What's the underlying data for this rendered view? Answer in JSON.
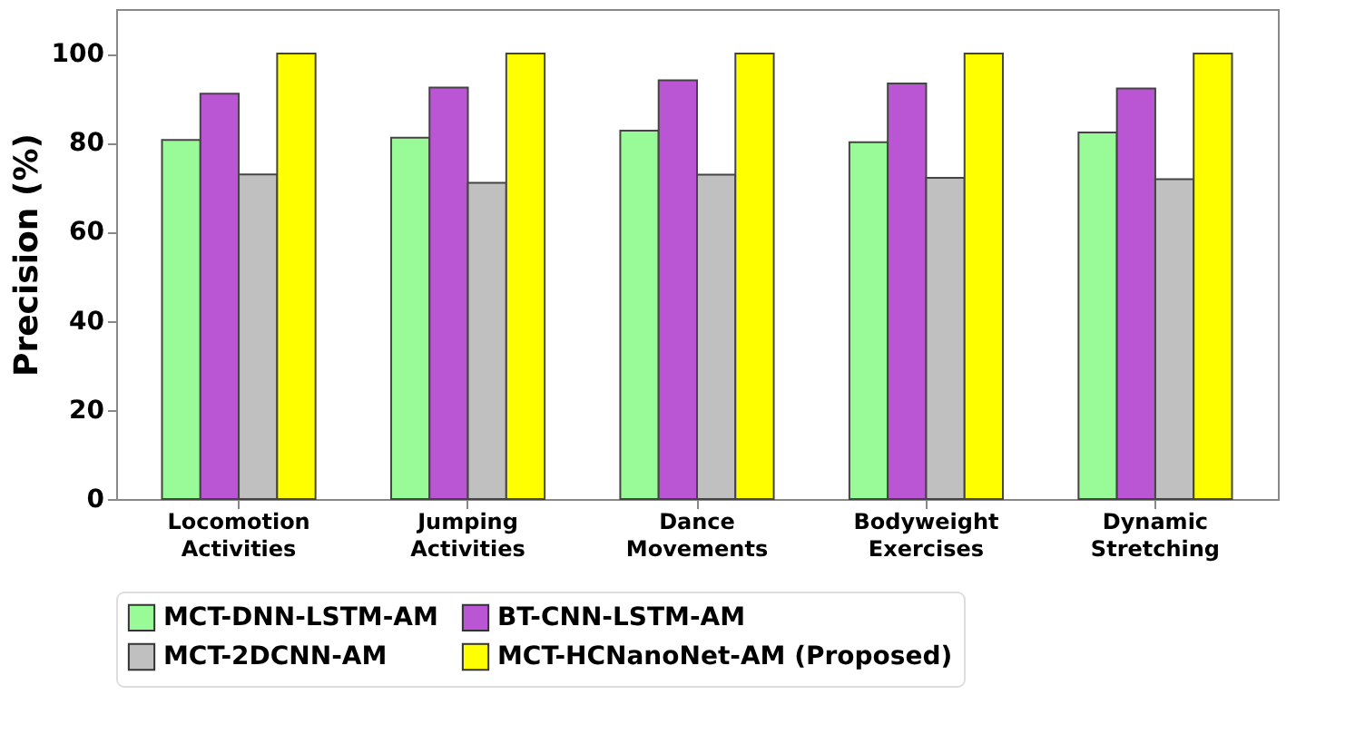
{
  "chart_data": {
    "type": "bar",
    "ylabel": "Precision (%)",
    "categories": [
      "Locomotion Activities",
      "Jumping Activities",
      "Dance Movements",
      "Bodyweight Exercises",
      "Dynamic Stretching"
    ],
    "series": [
      {
        "name": "MCT-DNN-LSTM-AM",
        "color": "#98fb98",
        "values": [
          80.6,
          81.1,
          82.7,
          80.1,
          82.3
        ]
      },
      {
        "name": "BT-CNN-LSTM-AM",
        "color": "#ba55d3",
        "values": [
          91.0,
          92.4,
          94.0,
          93.3,
          92.2
        ]
      },
      {
        "name": "MCT-2DCNN-AM",
        "color": "#c0c0c0",
        "values": [
          72.9,
          71.0,
          72.8,
          72.1,
          71.8
        ]
      },
      {
        "name": "MCT-HCNanoNet-AM (Proposed)",
        "color": "#ffff00",
        "values": [
          100,
          100,
          100,
          100,
          100
        ]
      }
    ],
    "ylim": [
      0,
      110
    ],
    "yticks": [
      0,
      20,
      40,
      60,
      80,
      100
    ],
    "grid": false,
    "legend": "bottom"
  }
}
